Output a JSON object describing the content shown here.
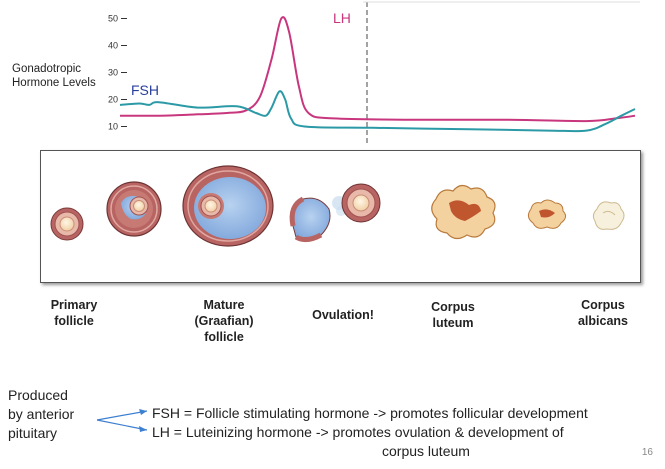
{
  "chart": {
    "ylabel_line1": "Gonadotropic",
    "ylabel_line2": "Hormone Levels",
    "y_ticks": [
      10,
      20,
      30,
      40,
      50
    ],
    "series_labels": {
      "fsh": "FSH",
      "lh": "LH"
    },
    "colors": {
      "lh": "#c8367e",
      "fsh": "#2b9aa6",
      "fsh_label": "#2a3f9c",
      "lh_label": "#c8367e"
    }
  },
  "chart_data": {
    "type": "line",
    "ylabel": "Gonadotropic Hormone Levels",
    "ylim": [
      5,
      55
    ],
    "y_ticks": [
      10,
      20,
      30,
      40,
      50
    ],
    "ovulation_marker": "dashed vertical line at LH peak",
    "series": [
      {
        "name": "LH",
        "color": "#c8367e",
        "points": [
          [
            0,
            14
          ],
          [
            20,
            14
          ],
          [
            40,
            14.5
          ],
          [
            55,
            15
          ],
          [
            65,
            16
          ],
          [
            72,
            21
          ],
          [
            78,
            35
          ],
          [
            83,
            50
          ],
          [
            87,
            45
          ],
          [
            92,
            25
          ],
          [
            97,
            15
          ],
          [
            110,
            13
          ],
          [
            150,
            12.5
          ],
          [
            200,
            12.5
          ],
          [
            240,
            12
          ],
          [
            255,
            13
          ],
          [
            265,
            14
          ]
        ]
      },
      {
        "name": "FSH",
        "color": "#2b9aa6",
        "points": [
          [
            0,
            18
          ],
          [
            10,
            18.5
          ],
          [
            15,
            18
          ],
          [
            20,
            19
          ],
          [
            40,
            17
          ],
          [
            60,
            17.5
          ],
          [
            70,
            15
          ],
          [
            75,
            14
          ],
          [
            78,
            17
          ],
          [
            82,
            23
          ],
          [
            85,
            20
          ],
          [
            88,
            13
          ],
          [
            95,
            10
          ],
          [
            130,
            9.5
          ],
          [
            180,
            9
          ],
          [
            220,
            8.5
          ],
          [
            240,
            8.5
          ],
          [
            250,
            11
          ],
          [
            258,
            14
          ],
          [
            265,
            16.5
          ]
        ]
      }
    ]
  },
  "stages": {
    "primary": {
      "line1": "Primary",
      "line2": "follicle"
    },
    "mature": {
      "line1": "Mature",
      "line2": "(Graafian)",
      "line3": "follicle"
    },
    "ovulation": {
      "line1": "Ovulation!"
    },
    "luteum": {
      "line1": "Corpus",
      "line2": "luteum"
    },
    "albicans": {
      "line1": "Corpus",
      "line2": "albicans"
    }
  },
  "legend": {
    "produced_line1": "Produced",
    "produced_line2": "by anterior",
    "produced_line3": "pituitary",
    "fsh_def": "FSH = Follicle stimulating hormone -> promotes follicular development",
    "lh_def_line1": "LH = Luteinizing hormone -> promotes ovulation & development of",
    "lh_def_line2": "corpus luteum",
    "arrow_color": "#3d7fd0"
  },
  "page_number": "16"
}
